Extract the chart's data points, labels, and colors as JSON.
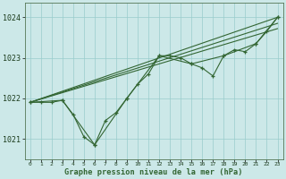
{
  "xlabel": "Graphe pression niveau de la mer (hPa)",
  "xlim": [
    -0.5,
    23.5
  ],
  "ylim": [
    1020.5,
    1024.35
  ],
  "yticks": [
    1021,
    1022,
    1023,
    1024
  ],
  "xticks": [
    0,
    1,
    2,
    3,
    4,
    5,
    6,
    7,
    8,
    9,
    10,
    11,
    12,
    13,
    14,
    15,
    16,
    17,
    18,
    19,
    20,
    21,
    22,
    23
  ],
  "background_color": "#cce8e8",
  "grid_color": "#99cccc",
  "line_color": "#336633",
  "series1": [
    [
      0,
      1021.9
    ],
    [
      1,
      1021.9
    ],
    [
      2,
      1021.9
    ],
    [
      3,
      1021.95
    ],
    [
      4,
      1021.6
    ],
    [
      5,
      1021.05
    ],
    [
      6,
      1020.85
    ],
    [
      7,
      1021.45
    ],
    [
      8,
      1021.65
    ],
    [
      9,
      1022.0
    ],
    [
      10,
      1022.35
    ],
    [
      11,
      1022.6
    ],
    [
      12,
      1023.05
    ],
    [
      13,
      1023.05
    ],
    [
      14,
      1023.0
    ],
    [
      15,
      1022.85
    ],
    [
      16,
      1022.75
    ],
    [
      17,
      1022.55
    ],
    [
      18,
      1023.05
    ],
    [
      19,
      1023.2
    ],
    [
      20,
      1023.15
    ],
    [
      21,
      1023.35
    ],
    [
      22,
      1023.65
    ],
    [
      23,
      1024.0
    ]
  ],
  "series2": [
    [
      0,
      1021.9
    ],
    [
      3,
      1021.95
    ],
    [
      6,
      1020.85
    ],
    [
      9,
      1022.0
    ],
    [
      12,
      1023.05
    ],
    [
      15,
      1022.85
    ],
    [
      18,
      1023.05
    ],
    [
      21,
      1023.35
    ],
    [
      23,
      1024.0
    ]
  ],
  "trend_lines": [
    [
      [
        0,
        1021.9
      ],
      [
        23,
        1024.0
      ]
    ],
    [
      [
        0,
        1021.9
      ],
      [
        23,
        1023.72
      ]
    ],
    [
      [
        0,
        1021.9
      ],
      [
        23,
        1023.85
      ]
    ]
  ]
}
